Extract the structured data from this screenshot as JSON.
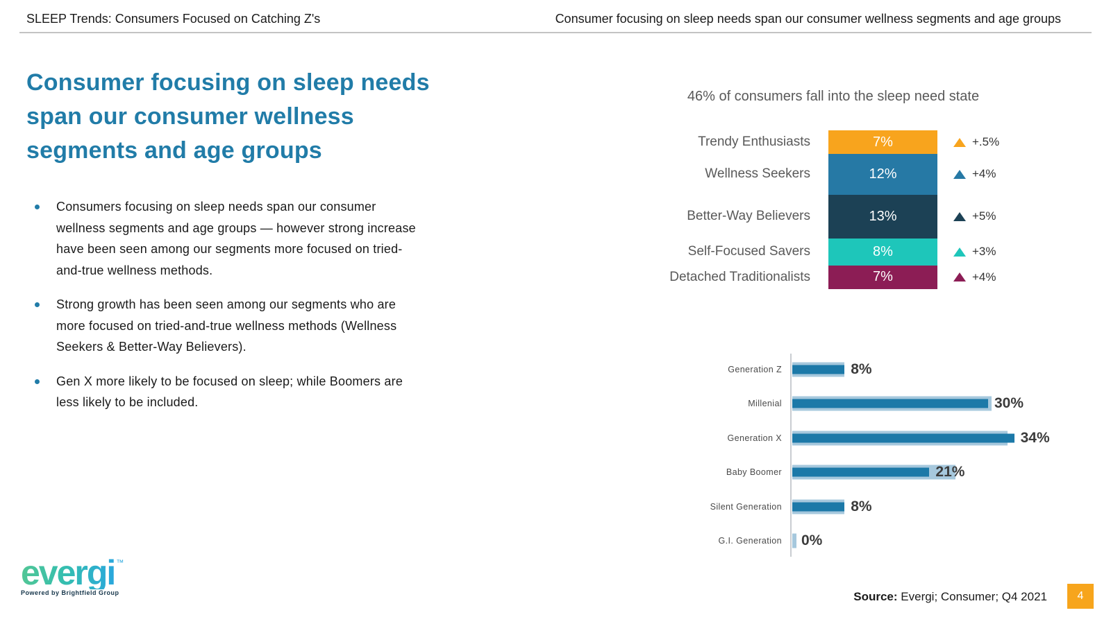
{
  "header": {
    "left": "SLEEP Trends: Consumers Focused on Catching Z's",
    "right": "Consumer focusing on sleep needs span our consumer wellness segments and age groups"
  },
  "main": {
    "title_lines": [
      "Consumer focusing on sleep needs",
      "span our consumer wellness",
      "segments and age groups"
    ],
    "bullets": [
      {
        "lines": [
          "Consumers focusing on sleep needs span our consumer",
          "wellness segments and age groups — however strong increase",
          "have been seen among our segments more focused on tried-",
          "and-true wellness methods."
        ]
      },
      {
        "lines": [
          "Strong growth has been seen among our segments who are",
          "more focused on tried-and-true wellness methods (Wellness",
          "Seekers & Better-Way Believers)."
        ]
      },
      {
        "lines": [
          "Gen X more likely to be focused on sleep; while Boomers are",
          "less likely to be included."
        ]
      }
    ]
  },
  "chart_data": [
    {
      "type": "bar",
      "variant": "stacked-vertical-segments",
      "title": "46% of consumers fall into the sleep need state",
      "categories": [
        "Trendy Enthusiasts",
        "Wellness Seekers",
        "Better-Way Believers",
        "Self-Focused Savers",
        "Detached Traditionalists"
      ],
      "values": [
        7,
        12,
        13,
        8,
        7
      ],
      "value_labels": [
        "7%",
        "12%",
        "13%",
        "8%",
        "7%"
      ],
      "changes": [
        "+.5%",
        "+4%",
        "+5%",
        "+3%",
        "+4%"
      ],
      "colors": [
        "#F8A41D",
        "#2679A5",
        "#1C4155",
        "#1EC6BA",
        "#8C1D55"
      ],
      "total_label": "46%",
      "grid": false,
      "legend_position": "none"
    },
    {
      "type": "bar",
      "variant": "horizontal-overlay",
      "categories": [
        "Generation Z",
        "Millenial",
        "Generation X",
        "Baby Boomer",
        "Silent Generation",
        "G.I. Generation"
      ],
      "series": [
        {
          "name": "comparison-background",
          "color": "#A6C8DD",
          "values": [
            8,
            30.5,
            33,
            25,
            8,
            0.6
          ]
        },
        {
          "name": "sleep-need-state",
          "color": "#1C79A8",
          "values": [
            8,
            30,
            34,
            21,
            8,
            0
          ]
        }
      ],
      "value_labels": [
        "8%",
        "30%",
        "34%",
        "21%",
        "8%",
        "0%"
      ],
      "xlim": [
        0,
        36
      ],
      "grid": false,
      "legend_position": "none"
    }
  ],
  "footer": {
    "logo_text": "evergi",
    "logo_tm": "™",
    "logo_tagline": "Powered by Brightfield Group",
    "source_label": "Source:",
    "source_text": " Evergi; Consumer; Q4 2021",
    "page_number": "4"
  },
  "colors": {
    "title_teal": "#217CA8",
    "header_text": "#1A1A1A",
    "chart_text_gray": "#595959",
    "value_text_dark": "#3B3B3B",
    "axis_gray": "#C9CDD1",
    "rule_gray": "#C3C3C3",
    "page_box_orange": "#F7A51C",
    "logo_gradient_start": "#52C695",
    "logo_gradient_mid": "#35BFAE",
    "logo_gradient_end": "#2AA7DD"
  }
}
